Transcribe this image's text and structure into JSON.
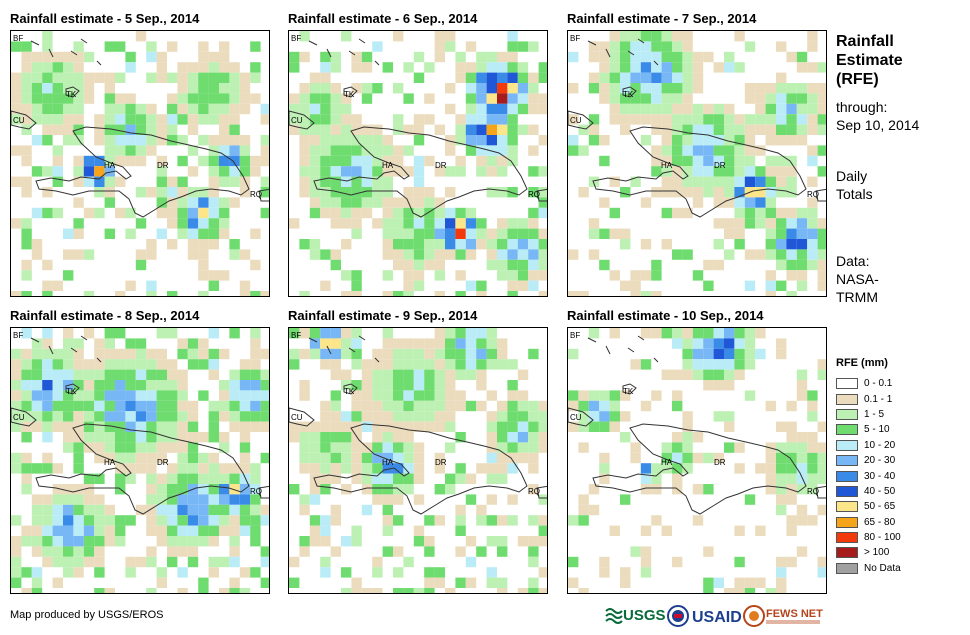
{
  "panels": [
    {
      "title": "Rainfall estimate - 5 Sep., 2014"
    },
    {
      "title": "Rainfall estimate - 6 Sep., 2014"
    },
    {
      "title": "Rainfall estimate - 7 Sep., 2014"
    },
    {
      "title": "Rainfall estimate - 8 Sep., 2014"
    },
    {
      "title": "Rainfall estimate - 9 Sep., 2014"
    },
    {
      "title": "Rainfall estimate - 10 Sep., 2014"
    }
  ],
  "places": {
    "bf": "BF",
    "cu": "CU",
    "tk": "TK",
    "ha": "HA",
    "dr": "DR",
    "rq": "RQ"
  },
  "side": {
    "title_line1": "Rainfall",
    "title_line2": "Estimate",
    "title_line3": "(RFE)",
    "through_line1": "through:",
    "through_line2": "Sep 10, 2014",
    "daily_line1": "Daily",
    "daily_line2": "Totals",
    "data_line1": "Data:",
    "data_line2": "NASA-",
    "data_line3": "TRMM"
  },
  "legend": {
    "title": "RFE (mm)",
    "items": [
      {
        "label": "0 - 0.1",
        "color": "#ffffff"
      },
      {
        "label": "0.1 - 1",
        "color": "#ecdcbe"
      },
      {
        "label": "1 - 5",
        "color": "#bdf0b3"
      },
      {
        "label": "5 - 10",
        "color": "#6fdc6f"
      },
      {
        "label": "10 - 20",
        "color": "#b9ecf7"
      },
      {
        "label": "20 - 30",
        "color": "#78b7f5"
      },
      {
        "label": "30 - 40",
        "color": "#3a8ae8"
      },
      {
        "label": "40 - 50",
        "color": "#1f57d6"
      },
      {
        "label": "50 - 65",
        "color": "#fde68a"
      },
      {
        "label": "65 - 80",
        "color": "#f6a51b"
      },
      {
        "label": "80 - 100",
        "color": "#f23a0d"
      },
      {
        "label": "> 100",
        "color": "#a61b1b"
      },
      {
        "label": "No Data",
        "color": "#a0a0a0"
      }
    ]
  },
  "footer": {
    "credit": "Map produced by USGS/EROS"
  },
  "logos": {
    "usgs": "USGS",
    "usaid": "USAID",
    "fewsnet": "FEWS NET"
  }
}
